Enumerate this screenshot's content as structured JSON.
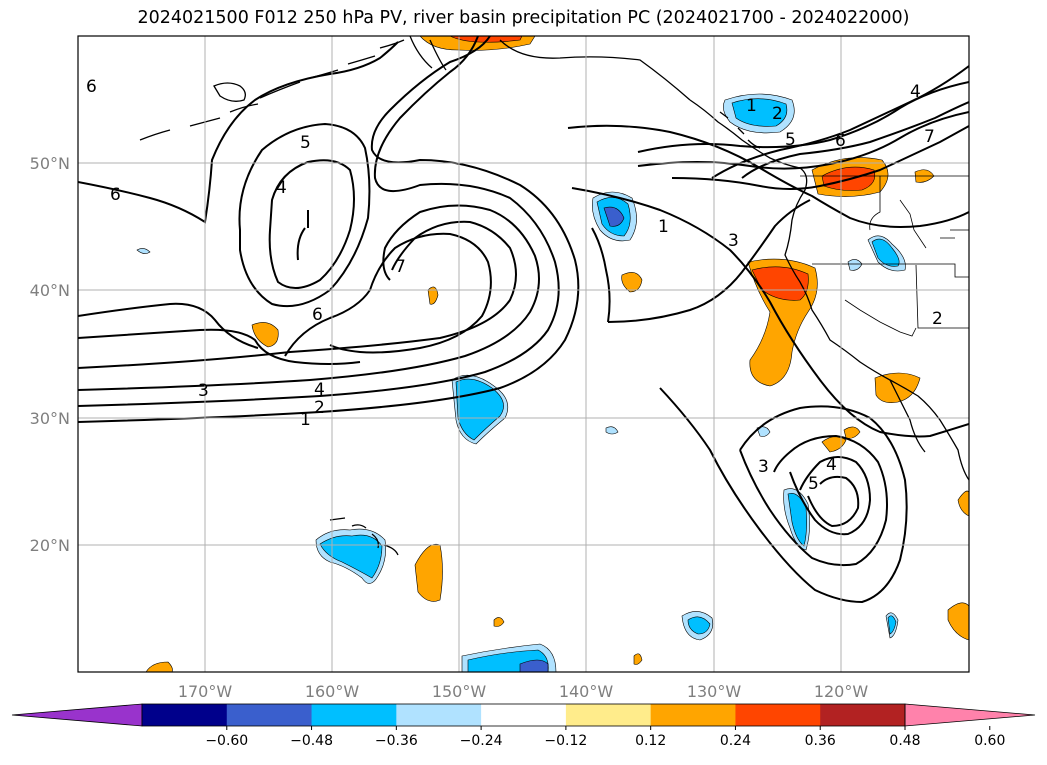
{
  "title": "2024021500 F012 250 hPa PV, river basin precipitation PC (2024021700 - 2024022000)",
  "map": {
    "projection": "plate-carree",
    "lon_range_west": [
      180,
      110
    ],
    "lat_range": [
      10,
      60
    ],
    "gridlines": true,
    "lon_ticks": [
      "170°W",
      "160°W",
      "150°W",
      "140°W",
      "130°W",
      "120°W"
    ],
    "lat_ticks": [
      "50°N",
      "40°N",
      "30°N",
      "20°N"
    ],
    "contour_field": "250 hPa PV",
    "contour_labels": [
      "6",
      "5",
      "4",
      "7",
      "6",
      "3",
      "4",
      "2",
      "1",
      "1",
      "2",
      "5",
      "6",
      "1",
      "3",
      "4",
      "7",
      "2",
      "3",
      "4",
      "5",
      "6"
    ],
    "shading_field": "river basin precipitation PC"
  },
  "colorbar": {
    "extend": "both",
    "boundaries": [
      "-0.60",
      "-0.48",
      "-0.36",
      "-0.24",
      "-0.12",
      "0.12",
      "0.24",
      "0.36",
      "0.48",
      "0.60"
    ],
    "colors": [
      "#9933cc",
      "#00008b",
      "#3a5fcd",
      "#00bfff",
      "#b0e2ff",
      "#ffffff",
      "#ffec8b",
      "#ffa500",
      "#ff4500",
      "#b22222",
      "#ff82ab"
    ]
  }
}
